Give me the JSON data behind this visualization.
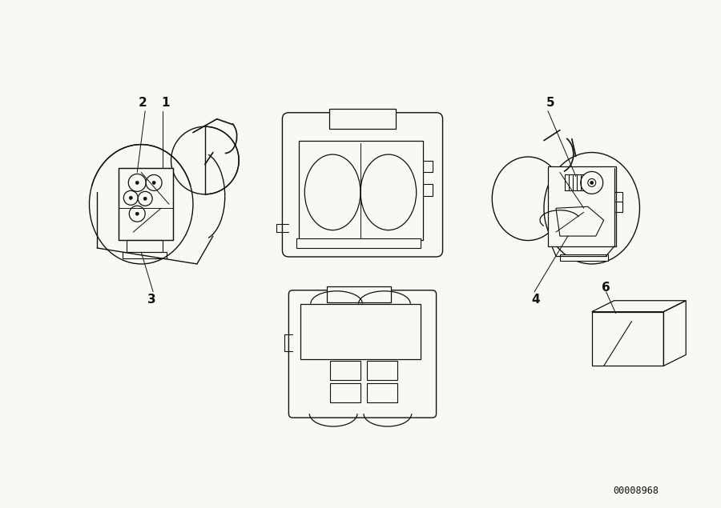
{
  "background_color": "#f8f8f5",
  "line_color": "#111111",
  "label_color": "#111111",
  "diagram_id": "00008968",
  "fig_width": 9.0,
  "fig_height": 6.35,
  "dpi": 100,
  "label_fontsize": 11,
  "id_fontsize": 8.5
}
